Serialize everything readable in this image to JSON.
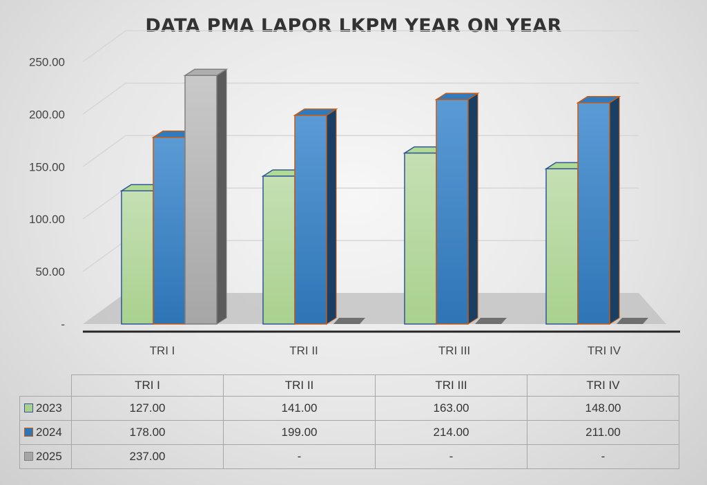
{
  "chart_data": {
    "type": "bar",
    "title": "DATA PMA LAPOR LKPM YEAR ON YEAR",
    "categories": [
      "TRI I",
      "TRI II",
      "TRI III",
      "TRI IV"
    ],
    "series": [
      {
        "name": "2023",
        "values": [
          127,
          141,
          163,
          148
        ],
        "display": [
          "127.00",
          "141.00",
          "163.00",
          "148.00"
        ],
        "color": "#a9d18e"
      },
      {
        "name": "2024",
        "values": [
          178,
          199,
          214,
          211
        ],
        "display": [
          "178.00",
          "199.00",
          "214.00",
          "211.00"
        ],
        "color": "#2e75b6"
      },
      {
        "name": "2025",
        "values": [
          237,
          null,
          null,
          null
        ],
        "display": [
          "237.00",
          "-",
          "-",
          "-"
        ],
        "color": "#a6a6a6"
      }
    ],
    "yticks": [
      {
        "value": 0,
        "label": "-"
      },
      {
        "value": 50,
        "label": "50.00"
      },
      {
        "value": 100,
        "label": "100.00"
      },
      {
        "value": 150,
        "label": "150.00"
      },
      {
        "value": 200,
        "label": "200.00"
      },
      {
        "value": 250,
        "label": "250.00"
      }
    ],
    "ylim": [
      0,
      250
    ],
    "grid": true,
    "legend": "data-table",
    "style": "3d-clustered-column"
  }
}
